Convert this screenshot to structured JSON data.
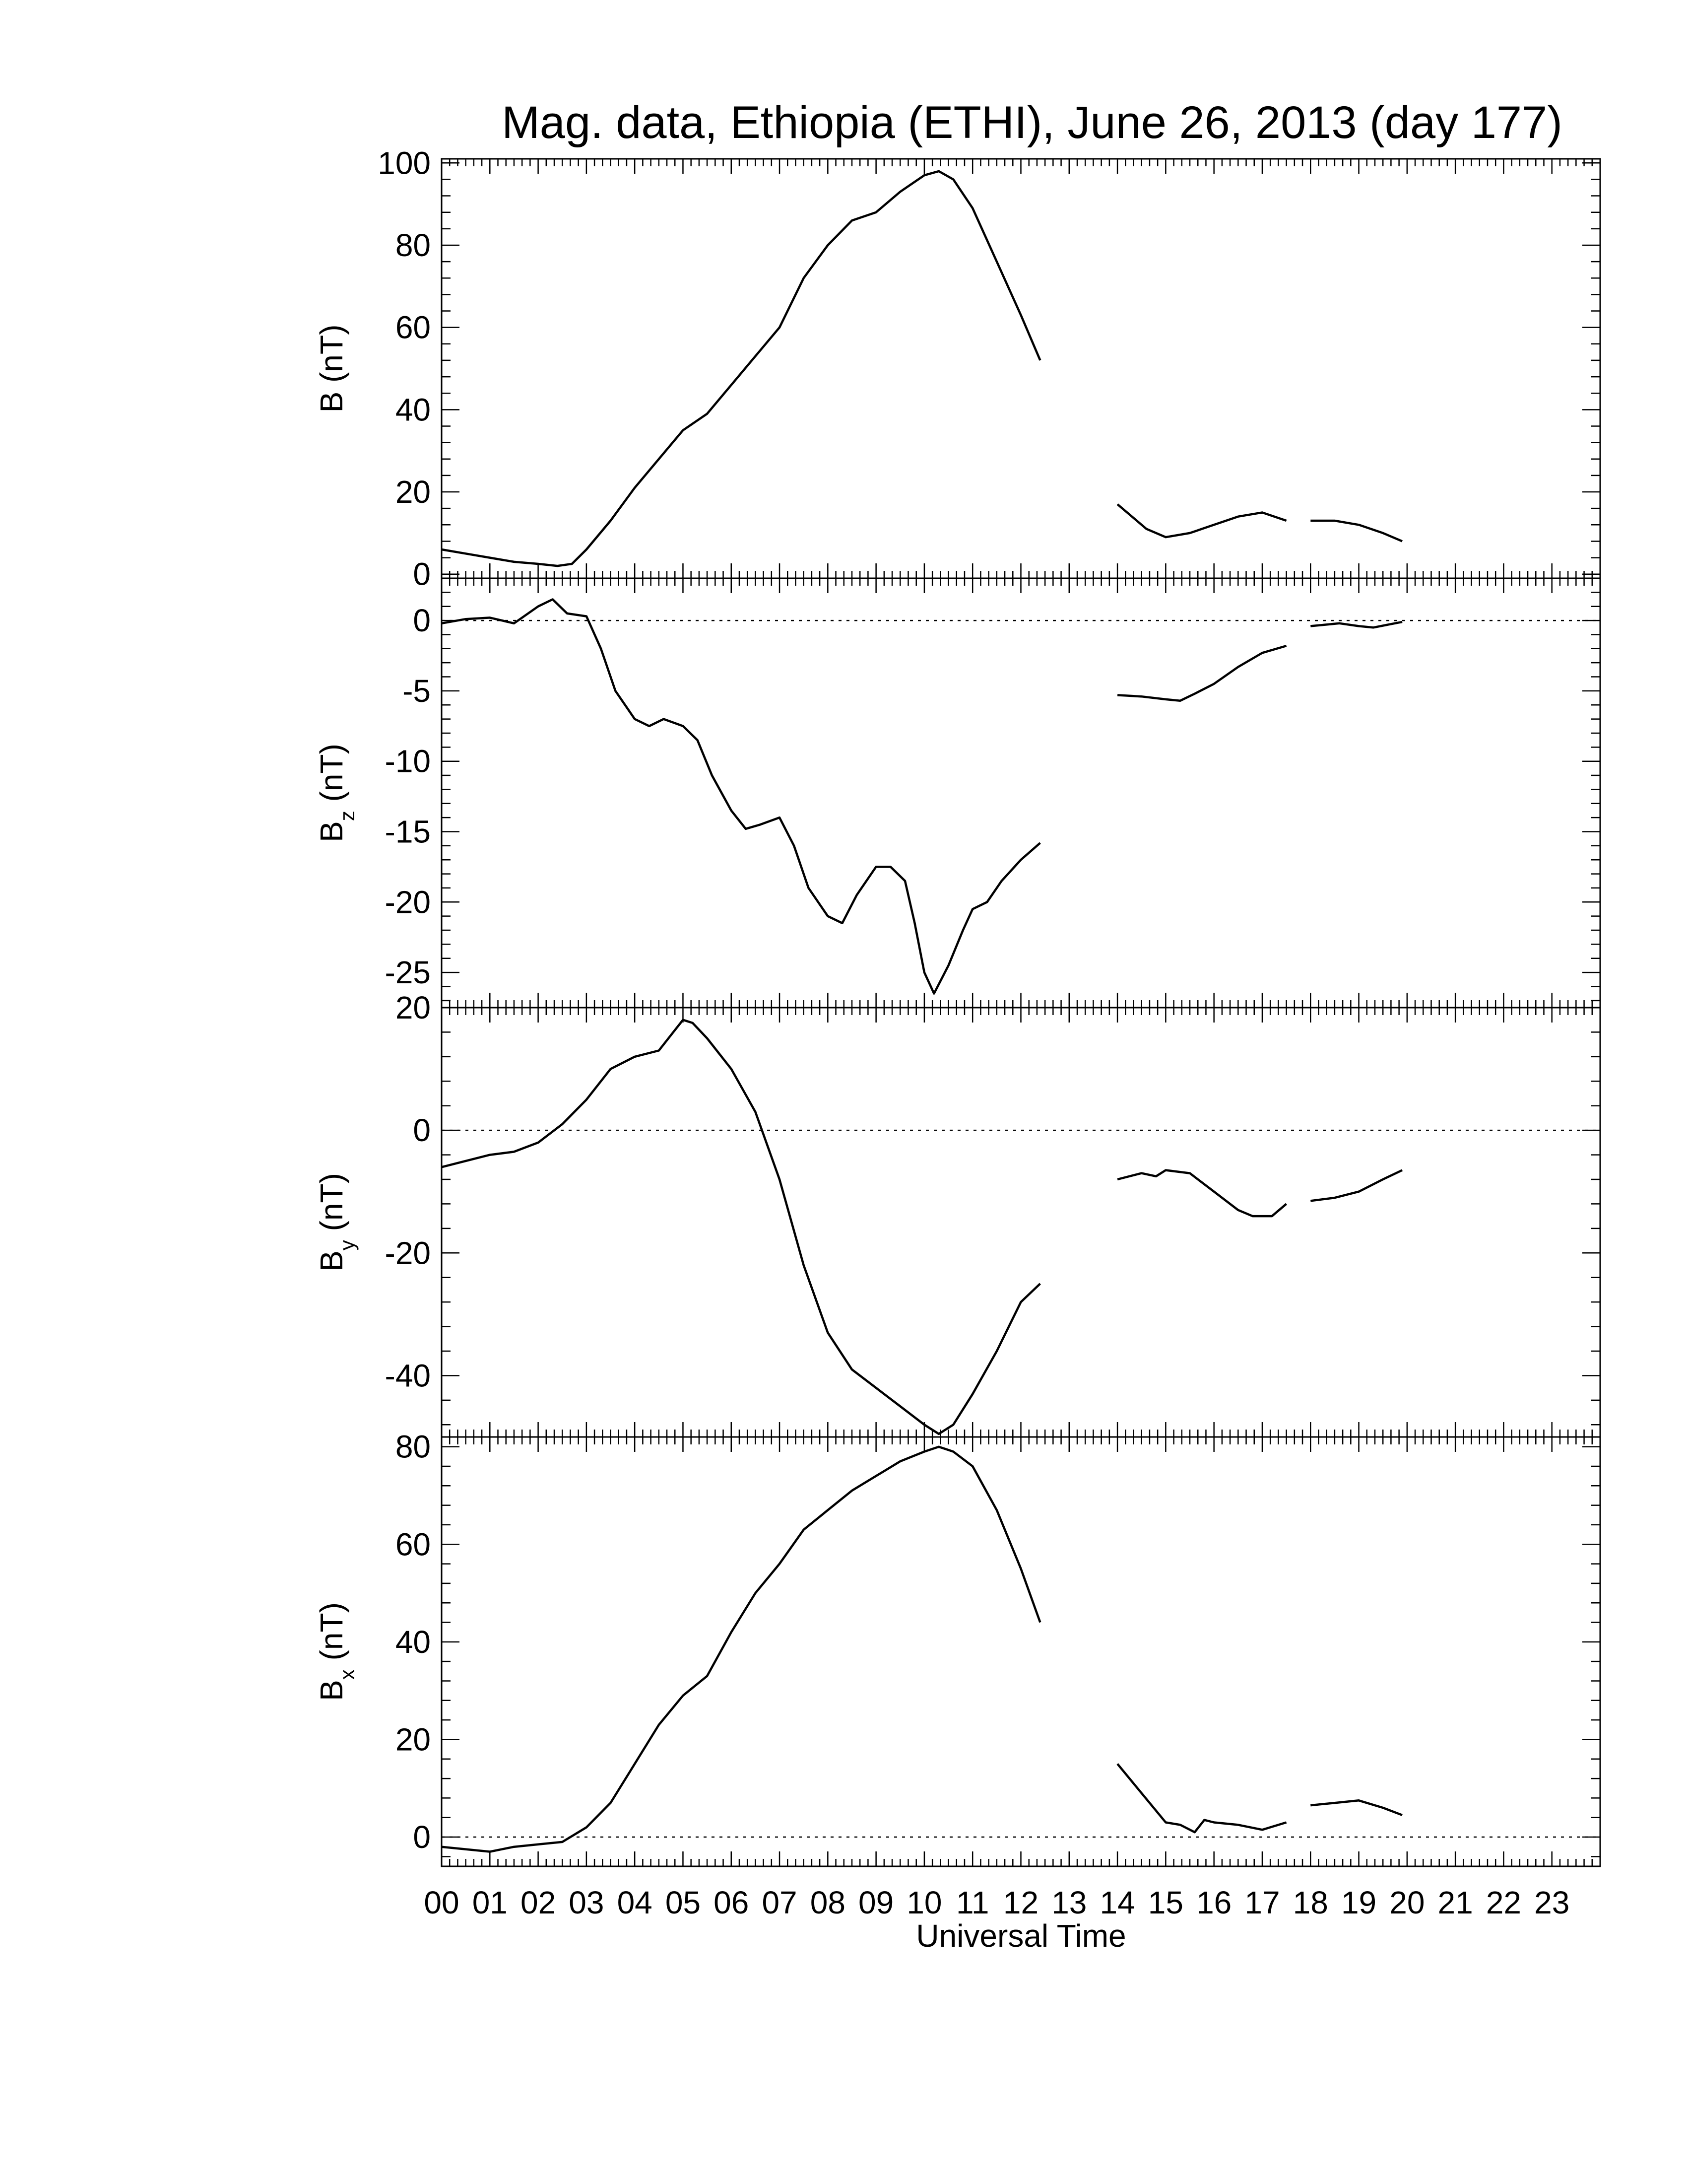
{
  "title": "Mag. data, Ethiopia (ETHI), June 26, 2013 (day 177)",
  "xlabel": "Universal Time",
  "x_tick_labels": [
    "00",
    "01",
    "02",
    "03",
    "04",
    "05",
    "06",
    "07",
    "08",
    "09",
    "10",
    "11",
    "12",
    "13",
    "14",
    "15",
    "16",
    "17",
    "18",
    "19",
    "20",
    "21",
    "22",
    "23"
  ],
  "chart_data": [
    {
      "type": "line",
      "ylabel": "B (nT)",
      "ylabel_main": "B",
      "ylabel_sub": "",
      "ylabel_unit": "(nT)",
      "ylim": [
        -1,
        101
      ],
      "yticks": [
        0,
        20,
        40,
        60,
        80,
        100
      ],
      "zero_line": false,
      "xlim": [
        0,
        24
      ],
      "segments": [
        {
          "x": [
            0.0,
            0.5,
            1.0,
            1.5,
            2.0,
            2.4,
            2.7,
            3.0,
            3.5,
            4.0,
            4.5,
            5.0,
            5.5,
            6.0,
            6.5,
            7.0,
            7.5,
            8.0,
            8.5,
            9.0,
            9.5,
            10.0,
            10.3,
            10.6,
            11.0,
            11.5,
            12.0,
            12.4
          ],
          "y": [
            6,
            5,
            4,
            3,
            2.5,
            2.0,
            2.5,
            6,
            13,
            21,
            28,
            35,
            39,
            46,
            53,
            60,
            72,
            80,
            86,
            88,
            93,
            97,
            98,
            96,
            89,
            76,
            63,
            52
          ]
        },
        {
          "x": [
            14.0,
            14.3,
            14.6,
            15.0,
            15.5,
            16.0,
            16.5,
            17.0,
            17.5
          ],
          "y": [
            17,
            14,
            11,
            9,
            10,
            12,
            14,
            15,
            13
          ]
        },
        {
          "x": [
            18.0,
            18.5,
            19.0,
            19.5,
            19.9
          ],
          "y": [
            13,
            13,
            12,
            10,
            8
          ]
        }
      ]
    },
    {
      "type": "line",
      "ylabel": "Bz (nT)",
      "ylabel_main": "B",
      "ylabel_sub": "z",
      "ylabel_unit": "(nT)",
      "ylim": [
        -27.5,
        3
      ],
      "yticks": [
        0,
        -5,
        -10,
        -15,
        -20,
        -25
      ],
      "zero_line": true,
      "xlim": [
        0,
        24
      ],
      "segments": [
        {
          "x": [
            0.0,
            0.5,
            1.0,
            1.5,
            2.0,
            2.3,
            2.6,
            3.0,
            3.3,
            3.6,
            4.0,
            4.3,
            4.6,
            5.0,
            5.3,
            5.6,
            6.0,
            6.3,
            6.6,
            7.0,
            7.3,
            7.6,
            8.0,
            8.3,
            8.6,
            9.0,
            9.3,
            9.6,
            9.8,
            10.0,
            10.2,
            10.5,
            10.8,
            11.0,
            11.3,
            11.6,
            12.0,
            12.4
          ],
          "y": [
            -0.2,
            0.1,
            0.2,
            -0.2,
            1,
            1.5,
            0.5,
            0.3,
            -2,
            -5,
            -7,
            -7.5,
            -7,
            -7.5,
            -8.5,
            -11,
            -13.5,
            -14.8,
            -14.5,
            -14,
            -16,
            -19,
            -21,
            -21.5,
            -19.5,
            -17.5,
            -17.5,
            -18.5,
            -21.5,
            -25,
            -26.5,
            -24.5,
            -22,
            -20.5,
            -20,
            -18.5,
            -17,
            -15.8
          ]
        },
        {
          "x": [
            14.0,
            14.5,
            15.0,
            15.3,
            15.6,
            16.0,
            16.5,
            17.0,
            17.5
          ],
          "y": [
            -5.3,
            -5.4,
            -5.6,
            -5.7,
            -5.2,
            -4.5,
            -3.3,
            -2.3,
            -1.8
          ]
        },
        {
          "x": [
            18.0,
            18.3,
            18.6,
            19.0,
            19.3,
            19.6,
            19.9
          ],
          "y": [
            -0.4,
            -0.3,
            -0.2,
            -0.4,
            -0.5,
            -0.3,
            -0.1
          ]
        }
      ]
    },
    {
      "type": "line",
      "ylabel": "By (nT)",
      "ylabel_main": "B",
      "ylabel_sub": "y",
      "ylabel_unit": "(nT)",
      "ylim": [
        -50,
        20
      ],
      "yticks": [
        20,
        0,
        -20,
        -40
      ],
      "zero_line": true,
      "xlim": [
        0,
        24
      ],
      "segments": [
        {
          "x": [
            0.0,
            0.5,
            1.0,
            1.5,
            2.0,
            2.5,
            3.0,
            3.5,
            4.0,
            4.5,
            4.8,
            5.0,
            5.2,
            5.5,
            6.0,
            6.5,
            7.0,
            7.5,
            8.0,
            8.5,
            9.0,
            9.5,
            10.0,
            10.3,
            10.6,
            11.0,
            11.5,
            12.0,
            12.4
          ],
          "y": [
            -6,
            -5,
            -4,
            -3.5,
            -2,
            1,
            5,
            10,
            12,
            13,
            16,
            18,
            17.5,
            15,
            10,
            3,
            -8,
            -22,
            -33,
            -39,
            -42,
            -45,
            -48,
            -49.5,
            -48,
            -43,
            -36,
            -28,
            -25
          ]
        },
        {
          "x": [
            14.0,
            14.5,
            14.8,
            15.0,
            15.5,
            16.0,
            16.5,
            16.8,
            17.2,
            17.5
          ],
          "y": [
            -8,
            -7,
            -7.5,
            -6.5,
            -7,
            -10,
            -13,
            -14,
            -14,
            -12
          ]
        },
        {
          "x": [
            18.0,
            18.5,
            19.0,
            19.5,
            19.9
          ],
          "y": [
            -11.5,
            -11,
            -10,
            -8,
            -6.5
          ]
        }
      ]
    },
    {
      "type": "line",
      "ylabel": "Bx (nT)",
      "ylabel_main": "B",
      "ylabel_sub": "x",
      "ylabel_unit": "(nT)",
      "ylim": [
        -6,
        82
      ],
      "yticks": [
        0,
        20,
        40,
        60,
        80
      ],
      "zero_line": true,
      "xlim": [
        0,
        24
      ],
      "segments": [
        {
          "x": [
            0.0,
            0.5,
            1.0,
            1.5,
            2.0,
            2.5,
            3.0,
            3.5,
            4.0,
            4.5,
            5.0,
            5.5,
            6.0,
            6.5,
            7.0,
            7.5,
            8.0,
            8.5,
            9.0,
            9.5,
            10.0,
            10.3,
            10.6,
            11.0,
            11.5,
            12.0,
            12.4
          ],
          "y": [
            -2,
            -2.5,
            -3,
            -2,
            -1.5,
            -1,
            2,
            7,
            15,
            23,
            29,
            33,
            42,
            50,
            56,
            63,
            67,
            71,
            74,
            77,
            79,
            80,
            79,
            76,
            67,
            55,
            44
          ]
        },
        {
          "x": [
            14.0,
            14.5,
            15.0,
            15.3,
            15.6,
            15.8,
            16.0,
            16.5,
            17.0,
            17.5
          ],
          "y": [
            15,
            9,
            3,
            2.5,
            1,
            3.5,
            3,
            2.5,
            1.5,
            3
          ]
        },
        {
          "x": [
            18.0,
            18.5,
            19.0,
            19.5,
            19.9
          ],
          "y": [
            6.5,
            7,
            7.5,
            6,
            4.5
          ]
        }
      ]
    }
  ]
}
